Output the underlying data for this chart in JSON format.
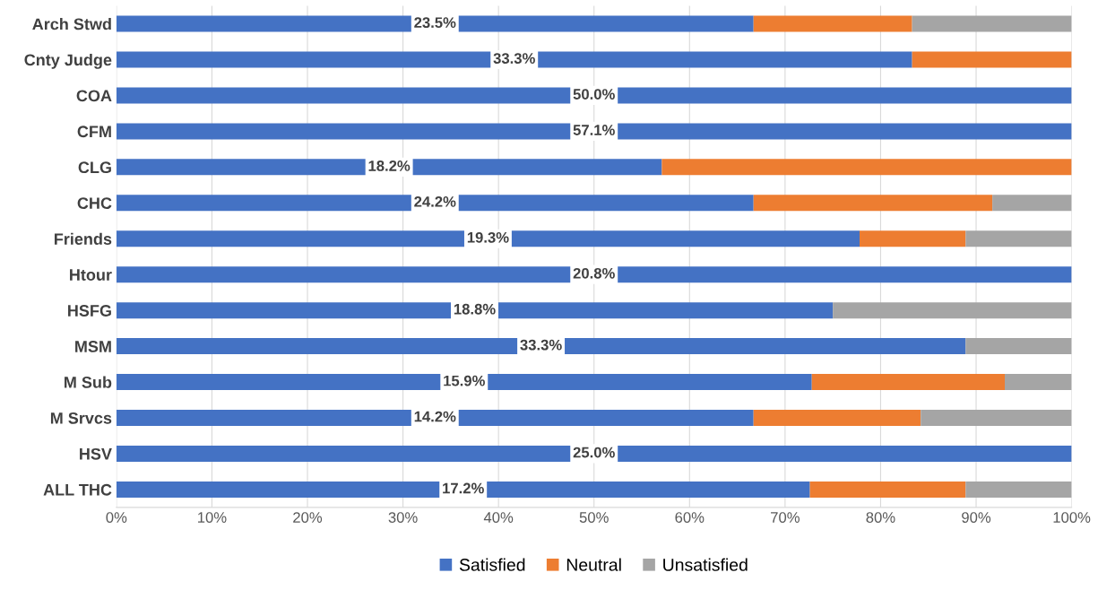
{
  "chart_data": {
    "type": "bar",
    "orientation": "horizontal",
    "stacked": true,
    "categories": [
      "Arch Stwd",
      "Cnty Judge",
      "COA",
      "CFM",
      "CLG",
      "CHC",
      "Friends",
      "Htour",
      "HSFG",
      "MSM",
      "M Sub",
      "M Srvcs",
      "HSV",
      "ALL THC"
    ],
    "series": [
      {
        "name": "Satisfied",
        "color": "#4472c4",
        "values": [
          66.7,
          83.3,
          100,
          100,
          57.1,
          66.7,
          77.8,
          100,
          75,
          88.9,
          72.8,
          66.7,
          100,
          72.6
        ]
      },
      {
        "name": "Neutral",
        "color": "#ed7d31",
        "values": [
          16.6,
          16.7,
          null,
          null,
          42.9,
          25.0,
          11.1,
          null,
          null,
          null,
          20.2,
          17.5,
          null,
          16.3
        ]
      },
      {
        "name": "Unsatisfied",
        "color": "#a5a5a5",
        "values": [
          16.7,
          null,
          null,
          null,
          null,
          8.3,
          11.1,
          null,
          25,
          11.1,
          7.0,
          15.8,
          null,
          11.1
        ]
      }
    ],
    "xlim": [
      0,
      100
    ],
    "xticks": [
      {
        "value": 0,
        "label": "0%"
      },
      {
        "value": 10,
        "label": "10%"
      },
      {
        "value": 20,
        "label": "20%"
      },
      {
        "value": 30,
        "label": "30%"
      },
      {
        "value": 40,
        "label": "40%"
      },
      {
        "value": 50,
        "label": "50%"
      },
      {
        "value": 60,
        "label": "60%"
      },
      {
        "value": 70,
        "label": "70%"
      },
      {
        "value": 80,
        "label": "80%"
      },
      {
        "value": 90,
        "label": "90%"
      },
      {
        "value": 100,
        "label": "100%"
      }
    ],
    "annotations": [
      "23.5%",
      "33.3%",
      "50.0%",
      "57.1%",
      "18.2%",
      "24.2%",
      "19.3%",
      "20.8%",
      "18.8%",
      "33.3%",
      "15.9%",
      "14.2%",
      "25.0%",
      "17.2%"
    ],
    "grid": "x",
    "legend": "bottom"
  }
}
